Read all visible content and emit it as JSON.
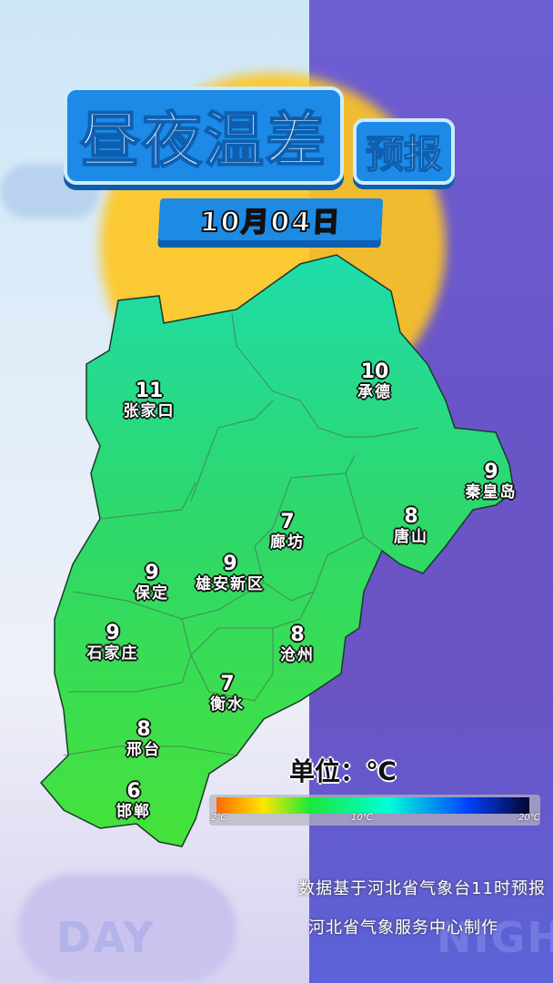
{
  "header": {
    "title_main": "昼夜温差",
    "title_sub": "预报",
    "date": "10月04日"
  },
  "cities": [
    {
      "name": "张家口",
      "value": "11"
    },
    {
      "name": "承德",
      "value": "10"
    },
    {
      "name": "秦皇岛",
      "value": "9"
    },
    {
      "name": "廊坊",
      "value": "7"
    },
    {
      "name": "唐山",
      "value": "8"
    },
    {
      "name": "保定",
      "value": "9"
    },
    {
      "name": "雄安新区",
      "value": "9"
    },
    {
      "name": "石家庄",
      "value": "9"
    },
    {
      "name": "沧州",
      "value": "8"
    },
    {
      "name": "衡水",
      "value": "7"
    },
    {
      "name": "邢台",
      "value": "8"
    },
    {
      "name": "邯郸",
      "value": "6"
    }
  ],
  "legend": {
    "unit": "单位：℃",
    "ticks": [
      "2℃",
      "10℃",
      "20℃"
    ],
    "colors": [
      "#ff6a00",
      "#ffe600",
      "#1be83a",
      "#00ffd8",
      "#0044ff",
      "#050530"
    ]
  },
  "footer": {
    "source": "数据基于河北省气象台11时预报",
    "producer": "河北省气象服务中心制作"
  },
  "background": {
    "day_label": "DAY",
    "night_label": "NIGHT"
  }
}
